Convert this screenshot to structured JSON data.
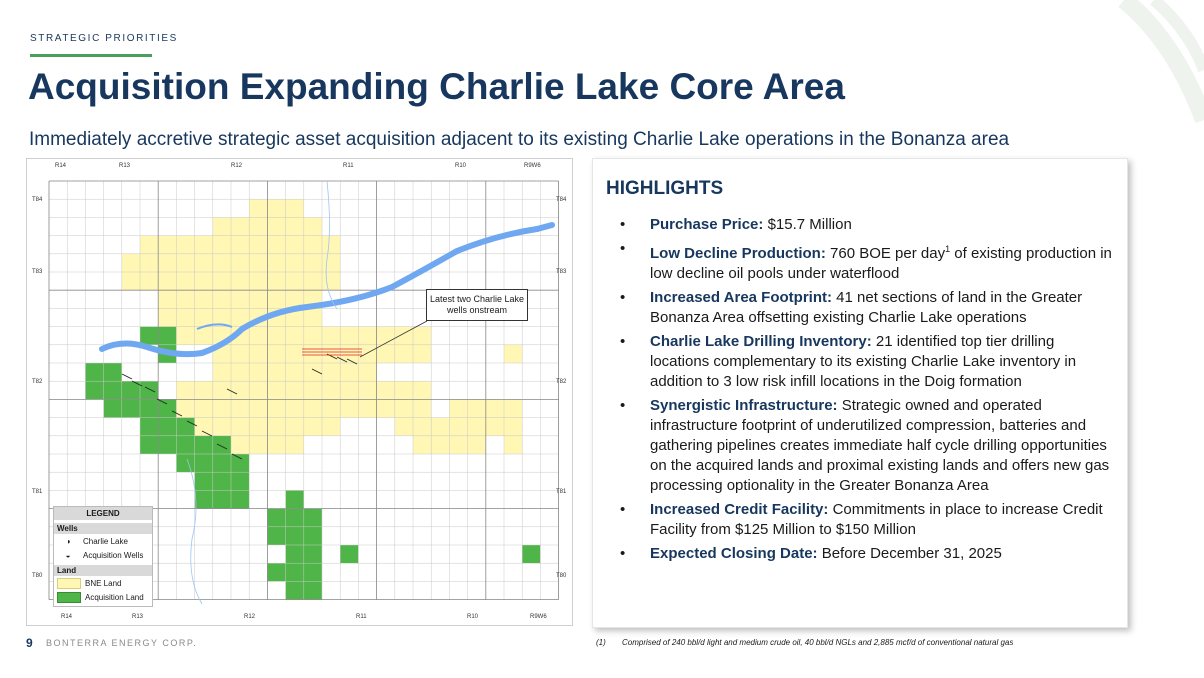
{
  "header": {
    "section_label": "STRATEGIC PRIORITIES",
    "title": "Acquisition Expanding Charlie Lake Core Area",
    "subtitle": "Immediately accretive strategic asset acquisition adjacent to its existing Charlie Lake operations in the Bonanza area"
  },
  "map": {
    "range_labels_top": [
      "R14",
      "R13",
      "R12",
      "R11",
      "R10",
      "R9W6"
    ],
    "range_labels_bottom": [
      "R14",
      "R13",
      "R12",
      "R11",
      "R10",
      "R9W6"
    ],
    "township_labels": [
      "T84",
      "T83",
      "T82",
      "T81",
      "T80"
    ],
    "callout": "Latest two Charlie Lake wells onstream",
    "legend": {
      "title": "LEGEND",
      "wells_heading": "Wells",
      "wells": [
        "Charlie Lake",
        "Acquisition Wells"
      ],
      "land_heading": "Land",
      "land": [
        {
          "label": "BNE Land",
          "color": "#fff7b3"
        },
        {
          "label": "Acquisition Land",
          "color": "#4fb548"
        }
      ]
    },
    "colors": {
      "river": "#6fa8f0",
      "bne_land": "#fff7b3",
      "acquisition_land": "#4fb548"
    }
  },
  "highlights": {
    "title": "HIGHLIGHTS",
    "items": [
      {
        "label": "Purchase Price:",
        "text": " $15.7 Million"
      },
      {
        "label": "Low Decline Production:",
        "text_pre": " 760 BOE per day",
        "sup": "1",
        "text_post": " of existing production in low decline oil pools under waterflood"
      },
      {
        "label": "Increased Area Footprint:",
        "text": " 41 net sections of land in the Greater Bonanza Area offsetting existing Charlie Lake operations"
      },
      {
        "label": "Charlie Lake Drilling Inventory:",
        "text": " 21 identified top tier drilling locations complementary to its existing Charlie Lake inventory in addition to 3 low risk infill locations in the Doig formation"
      },
      {
        "label": "Synergistic Infrastructure:",
        "text": " Strategic owned and operated infrastructure footprint of underutilized compression, batteries and gathering pipelines creates immediate half cycle drilling opportunities on the acquired lands and proximal existing lands and offers new gas processing optionality in the Greater Bonanza Area"
      },
      {
        "label": "Increased Credit Facility:",
        "text": " Commitments in place to increase Credit Facility from $125 Million to $150 Million"
      },
      {
        "label": "Expected Closing Date:",
        "text": " Before December 31, 2025"
      }
    ]
  },
  "footer": {
    "page_number": "9",
    "company": "BONTERRA ENERGY CORP.",
    "footnote_number": "(1)",
    "footnote_text": "Comprised of 240 bbl/d light and medium crude oil, 40 bbl/d NGLs and 2,885 mcf/d of conventional natural gas"
  }
}
